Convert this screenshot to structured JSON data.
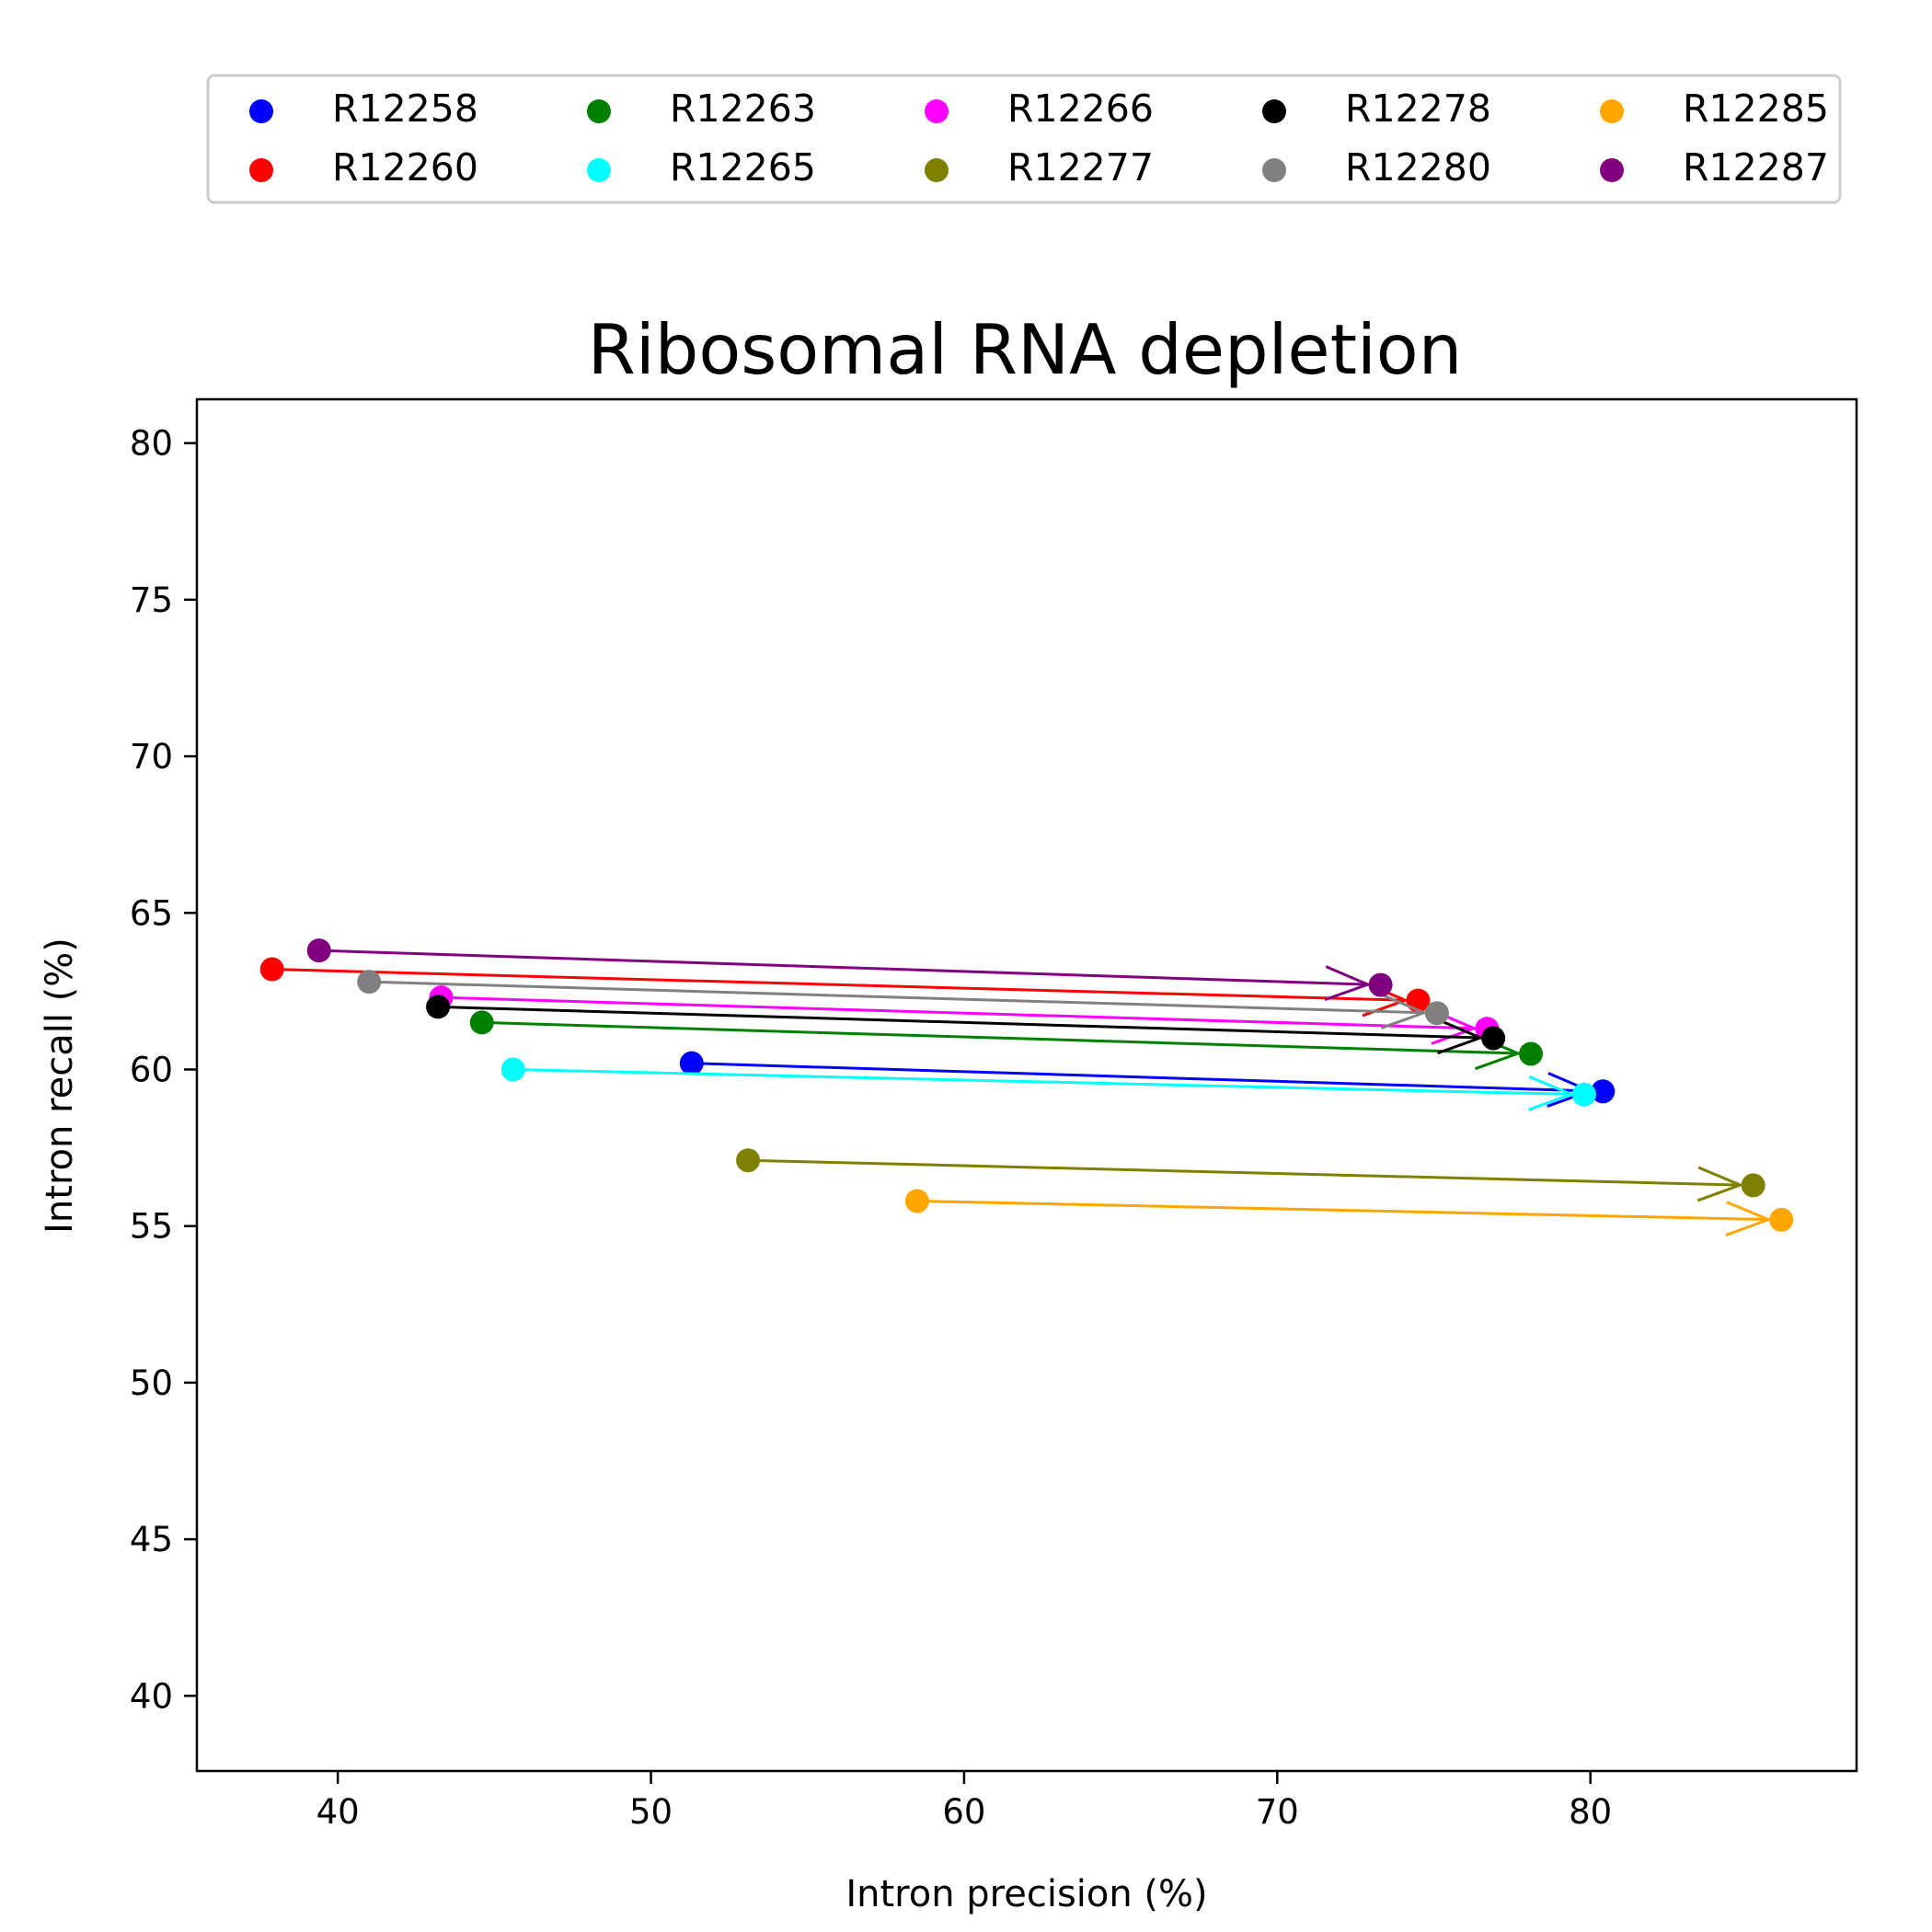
{
  "chart_data": {
    "type": "scatter",
    "title": "Ribosomal RNA depletion",
    "xlabel": "Intron precision (%)",
    "ylabel": "Intron recall (%)",
    "xlim": [
      35.5,
      88.5
    ],
    "ylim": [
      37.6,
      81.4
    ],
    "xticks": [
      40,
      50,
      60,
      70,
      80
    ],
    "yticks": [
      40,
      45,
      50,
      55,
      60,
      65,
      70,
      75,
      80
    ],
    "grid": false,
    "legend_position": "top, above plot (5 columns)",
    "marks": "each sample drawn as an arrow from the first point to the second point",
    "series": [
      {
        "name": "R12258",
        "color": "#0000ff",
        "points": [
          {
            "x": 51.3,
            "y": 60.2
          },
          {
            "x": 80.4,
            "y": 59.3
          }
        ]
      },
      {
        "name": "R12260",
        "color": "#ff0000",
        "points": [
          {
            "x": 37.9,
            "y": 63.2
          },
          {
            "x": 74.5,
            "y": 62.2
          }
        ]
      },
      {
        "name": "R12263",
        "color": "#008000",
        "points": [
          {
            "x": 44.6,
            "y": 61.5
          },
          {
            "x": 78.1,
            "y": 60.5
          }
        ]
      },
      {
        "name": "R12265",
        "color": "#00ffff",
        "points": [
          {
            "x": 45.6,
            "y": 60.0
          },
          {
            "x": 79.8,
            "y": 59.2
          }
        ]
      },
      {
        "name": "R12266",
        "color": "#ff00ff",
        "points": [
          {
            "x": 43.3,
            "y": 62.3
          },
          {
            "x": 76.7,
            "y": 61.3
          }
        ]
      },
      {
        "name": "R12277",
        "color": "#808000",
        "points": [
          {
            "x": 53.1,
            "y": 57.1
          },
          {
            "x": 85.2,
            "y": 56.3
          }
        ]
      },
      {
        "name": "R12278",
        "color": "#000000",
        "points": [
          {
            "x": 43.2,
            "y": 62.0
          },
          {
            "x": 76.9,
            "y": 61.0
          }
        ]
      },
      {
        "name": "R12280",
        "color": "#808080",
        "points": [
          {
            "x": 41.0,
            "y": 62.8
          },
          {
            "x": 75.1,
            "y": 61.8
          }
        ]
      },
      {
        "name": "R12285",
        "color": "#ffa500",
        "points": [
          {
            "x": 58.5,
            "y": 55.8
          },
          {
            "x": 86.1,
            "y": 55.2
          }
        ]
      },
      {
        "name": "R12287",
        "color": "#800080",
        "points": [
          {
            "x": 39.4,
            "y": 63.8
          },
          {
            "x": 73.3,
            "y": 62.7
          }
        ]
      }
    ]
  }
}
